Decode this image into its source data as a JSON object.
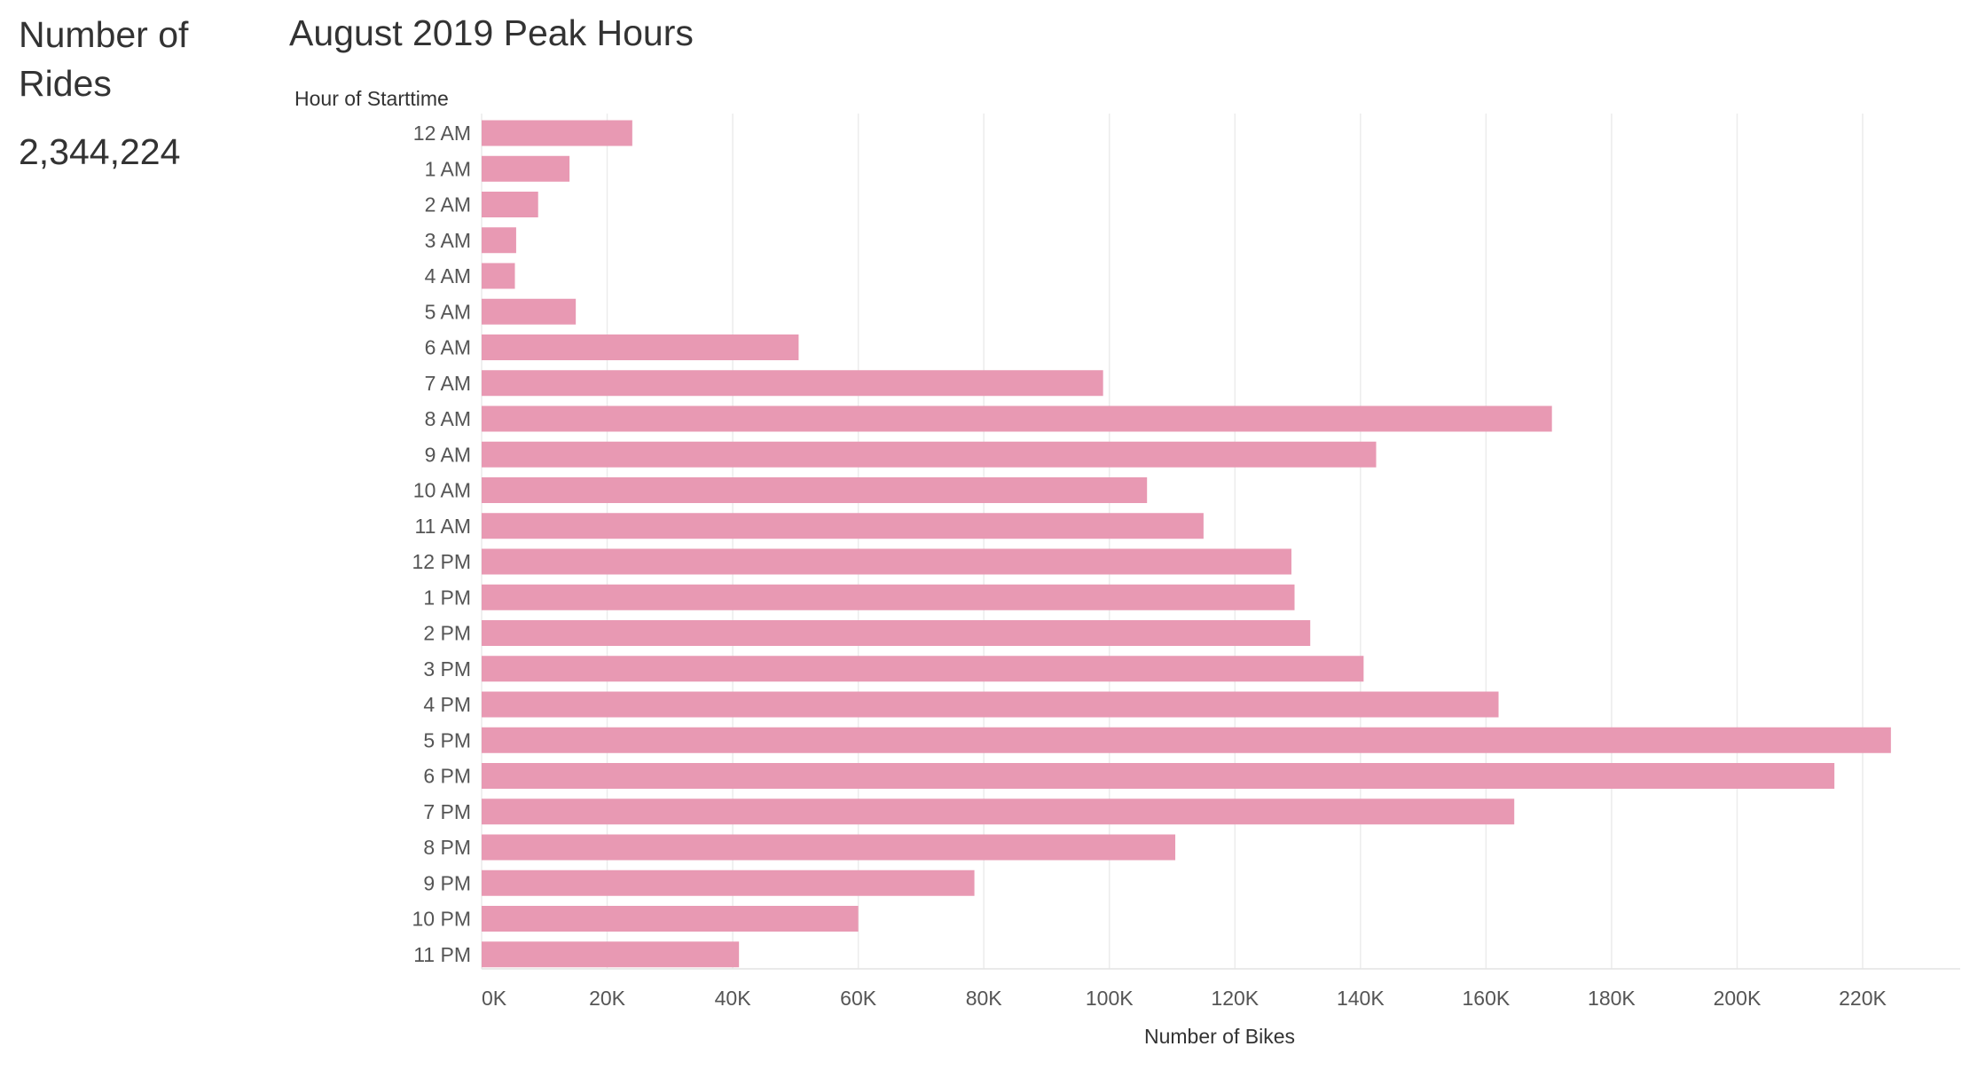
{
  "kpi": {
    "title": "Number of Rides",
    "value": "2,344,224"
  },
  "chart_data": {
    "type": "bar",
    "orientation": "horizontal",
    "title": "August 2019 Peak Hours",
    "ylabel": "Hour of Starttime",
    "xlabel": "Number of Bikes",
    "bar_color": "#e899b3",
    "grid": true,
    "xlim": [
      0,
      235000
    ],
    "xticks": [
      0,
      20000,
      40000,
      60000,
      80000,
      100000,
      120000,
      140000,
      160000,
      180000,
      200000,
      220000
    ],
    "xtick_labels": [
      "0K",
      "20K",
      "40K",
      "60K",
      "80K",
      "100K",
      "120K",
      "140K",
      "160K",
      "180K",
      "200K",
      "220K"
    ],
    "categories": [
      "12 AM",
      "1 AM",
      "2 AM",
      "3 AM",
      "4 AM",
      "5 AM",
      "6 AM",
      "7 AM",
      "8 AM",
      "9 AM",
      "10 AM",
      "11 AM",
      "12 PM",
      "1 PM",
      "2 PM",
      "3 PM",
      "4 PM",
      "5 PM",
      "6 PM",
      "7 PM",
      "8 PM",
      "9 PM",
      "10 PM",
      "11 PM"
    ],
    "values": [
      24000,
      14000,
      9000,
      5500,
      5300,
      15000,
      50500,
      99000,
      170500,
      142500,
      106000,
      115000,
      129000,
      129500,
      132000,
      140500,
      162000,
      224500,
      215500,
      164500,
      110500,
      78500,
      60000,
      41000
    ]
  }
}
